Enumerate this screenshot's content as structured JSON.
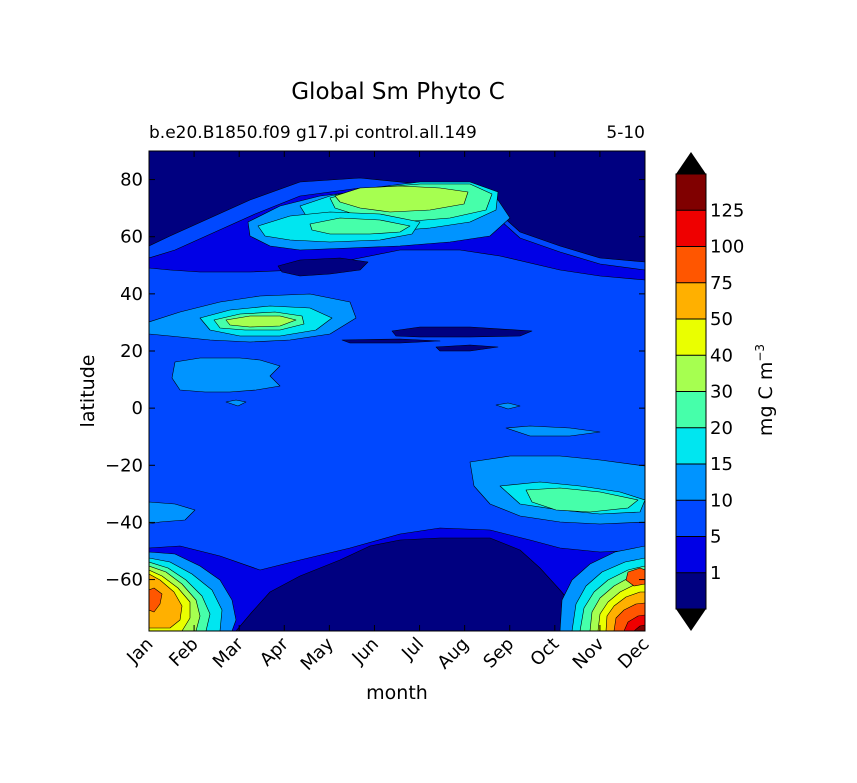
{
  "chart_data": {
    "type": "contourf",
    "title": "Global Sm Phyto C",
    "subtitle_left": "b.e20.B1850.f09 g17.pi control.all.149",
    "subtitle_right": "5-10",
    "xlabel": "month",
    "ylabel": "latitude",
    "x_categories": [
      "Jan",
      "Feb",
      "Mar",
      "Apr",
      "May",
      "Jun",
      "Jul",
      "Aug",
      "Sep",
      "Oct",
      "Nov",
      "Dec"
    ],
    "ylim": [
      -78,
      90
    ],
    "y_ticks": [
      -60,
      -40,
      -20,
      0,
      20,
      40,
      60,
      80
    ],
    "colorbar": {
      "label": "mg C m",
      "label_superscript": "−3",
      "levels": [
        0,
        1,
        5,
        10,
        15,
        20,
        30,
        40,
        50,
        75,
        100,
        125,
        150
      ],
      "tick_labels": [
        "1",
        "5",
        "10",
        "15",
        "20",
        "30",
        "40",
        "50",
        "75",
        "100",
        "125"
      ],
      "colors": [
        "#000080",
        "#0000e6",
        "#0048ff",
        "#0094ff",
        "#00e6f0",
        "#46ffaa",
        "#a6ff50",
        "#eaff00",
        "#ffb000",
        "#ff5600",
        "#ef0000",
        "#800000"
      ],
      "extend_color": "#000000"
    },
    "features": [
      {
        "name": "north-polar-bloom",
        "level": 6,
        "month": "Jun-Jul",
        "latitude": 72,
        "approx_value": 35
      },
      {
        "name": "north-60-bloom",
        "level": 5,
        "month": "Jun",
        "latitude": 63,
        "approx_value": 25
      },
      {
        "name": "subtropical-north-bloom",
        "level": 6,
        "month": "Apr",
        "latitude": 30,
        "approx_value": 35
      },
      {
        "name": "southern-ocean-bloom",
        "level": 5,
        "month": "Oct-Nov",
        "latitude": -33,
        "approx_value": 25
      },
      {
        "name": "antarctic-bloom-winter",
        "level": 8,
        "month": "Jan",
        "latitude": -70,
        "approx_value": 60
      },
      {
        "name": "antarctic-bloom-december",
        "level": 9,
        "month": "Dec",
        "latitude": -60,
        "approx_value": 90
      }
    ]
  }
}
